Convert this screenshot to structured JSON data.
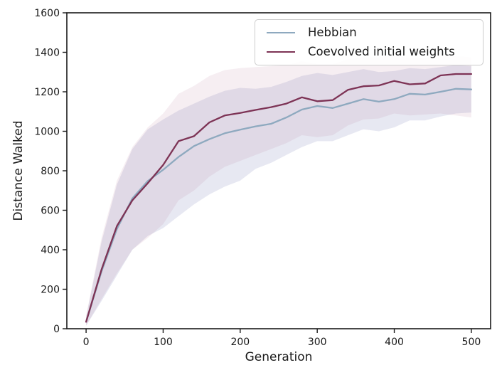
{
  "figure": {
    "background": "#ffffff",
    "text_color": "#1a1a1a",
    "spine_color": "#1a1a1a"
  },
  "chart_data": {
    "type": "line",
    "title": "",
    "xlabel": "Generation",
    "ylabel": "Distance Walked",
    "xlim": [
      -25,
      525
    ],
    "ylim": [
      0,
      1600
    ],
    "x_ticks": [
      0,
      100,
      200,
      300,
      400,
      500
    ],
    "y_ticks": [
      0,
      200,
      400,
      600,
      800,
      1000,
      1200,
      1400,
      1600
    ],
    "grid": false,
    "legend_position": "upper right",
    "x": [
      0,
      20,
      40,
      60,
      80,
      100,
      120,
      140,
      160,
      180,
      200,
      220,
      240,
      260,
      280,
      300,
      320,
      340,
      360,
      380,
      400,
      420,
      440,
      460,
      480,
      500
    ],
    "series": [
      {
        "name": "Hebbian",
        "color": "#8ea9bf",
        "band_color": "rgba(120, 130, 185, 0.18)",
        "mean": [
          35,
          290,
          505,
          660,
          748,
          805,
          870,
          925,
          960,
          990,
          1008,
          1025,
          1038,
          1070,
          1110,
          1128,
          1118,
          1140,
          1163,
          1150,
          1163,
          1190,
          1186,
          1200,
          1215,
          1212
        ],
        "lo": [
          15,
          140,
          270,
          400,
          470,
          510,
          570,
          630,
          680,
          720,
          750,
          810,
          840,
          880,
          920,
          950,
          950,
          980,
          1010,
          1000,
          1020,
          1055,
          1055,
          1075,
          1090,
          1095
        ],
        "hi": [
          60,
          440,
          730,
          910,
          1010,
          1060,
          1105,
          1140,
          1175,
          1205,
          1220,
          1215,
          1225,
          1250,
          1280,
          1295,
          1285,
          1300,
          1315,
          1300,
          1305,
          1320,
          1315,
          1325,
          1335,
          1330
        ]
      },
      {
        "name": "Coevolved initial weights",
        "color": "#7d3355",
        "band_color": "rgba(165, 90, 130, 0.10)",
        "mean": [
          35,
          300,
          520,
          650,
          737,
          830,
          950,
          975,
          1045,
          1080,
          1093,
          1108,
          1122,
          1140,
          1172,
          1152,
          1158,
          1210,
          1228,
          1232,
          1255,
          1238,
          1242,
          1283,
          1290,
          1290
        ],
        "lo": [
          15,
          150,
          280,
          400,
          460,
          530,
          650,
          700,
          770,
          820,
          850,
          880,
          910,
          940,
          980,
          970,
          980,
          1030,
          1060,
          1065,
          1090,
          1080,
          1085,
          1090,
          1080,
          1070
        ],
        "hi": [
          65,
          460,
          750,
          920,
          1020,
          1090,
          1190,
          1230,
          1280,
          1310,
          1320,
          1325,
          1330,
          1335,
          1355,
          1340,
          1340,
          1365,
          1375,
          1375,
          1385,
          1370,
          1370,
          1385,
          1380,
          1375
        ]
      }
    ]
  }
}
